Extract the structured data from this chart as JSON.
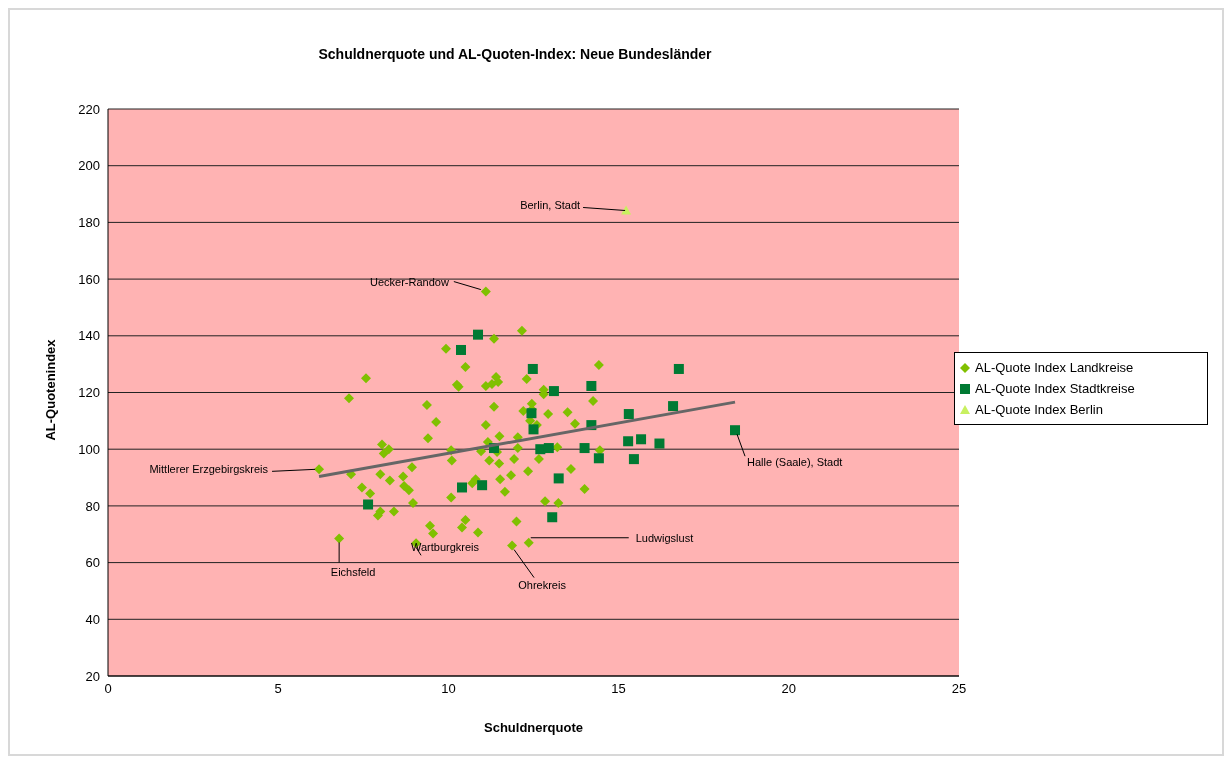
{
  "chart_data": {
    "type": "scatter",
    "title": "Schuldnerquote und AL-Quoten-Index: Neue Bundesländer",
    "xlabel": "Schuldnerquote",
    "ylabel": "AL-Quotenindex",
    "xlim": [
      0,
      25
    ],
    "xticks": [
      0,
      5,
      10,
      15,
      20,
      25
    ],
    "ylim": [
      20,
      220
    ],
    "yticks": [
      20,
      40,
      60,
      80,
      100,
      120,
      140,
      160,
      180,
      200,
      220
    ],
    "grid": "y",
    "legend": "right",
    "series": [
      {
        "name": "AL-Quote Index Landkreise",
        "color": "#80c000",
        "marker": "diamond",
        "x": [
          6.2,
          7.14,
          7.08,
          7.58,
          7.46,
          7.7,
          8.0,
          8.0,
          7.93,
          8.05,
          8.1,
          8.25,
          8.28,
          8.4,
          8.67,
          8.7,
          8.84,
          8.93,
          8.96,
          9.37,
          9.4,
          9.46,
          9.55,
          9.64,
          9.05,
          9.93,
          10.08,
          10.08,
          10.1,
          10.25,
          10.3,
          10.4,
          10.5,
          10.5,
          10.7,
          10.8,
          10.87,
          10.96,
          11.1,
          11.1,
          11.1,
          11.16,
          11.2,
          11.28,
          11.34,
          11.34,
          11.4,
          11.46,
          11.43,
          11.49,
          11.5,
          11.52,
          11.66,
          11.84,
          11.93,
          11.87,
          12.0,
          12.04,
          12.04,
          12.2,
          12.16,
          12.3,
          12.34,
          12.36,
          12.4,
          12.45,
          12.45,
          12.6,
          12.66,
          12.8,
          12.8,
          12.84,
          12.93,
          13.2,
          13.23,
          13.5,
          13.6,
          13.72,
          14.0,
          14.25,
          14.42,
          14.45,
          6.79
        ],
        "values": [
          92.9,
          91.2,
          118,
          125,
          86.5,
          84.4,
          91.2,
          78,
          76.6,
          101.7,
          98.5,
          100,
          89,
          78,
          90.4,
          87,
          85.5,
          93.6,
          81,
          115.6,
          103.9,
          73,
          70.3,
          109.6,
          66.8,
          135.4,
          99.6,
          83,
          96,
          122.7,
          122,
          72.4,
          75,
          129,
          88,
          89.4,
          70.6,
          99.3,
          155.6,
          122.3,
          108.5,
          102.5,
          96,
          123,
          139,
          115,
          125.5,
          123.7,
          99,
          95,
          104.6,
          89.4,
          85,
          90.8,
          96.5,
          66,
          74.5,
          100.4,
          104.2,
          113.5,
          141.8,
          124.8,
          92.2,
          67,
          110,
          114,
          116,
          108.5,
          96.5,
          121,
          119.4,
          81.6,
          112.4,
          100.7,
          81,
          113,
          93,
          109,
          86,
          117,
          129.7,
          99.6,
          68.5
        ]
      },
      {
        "name": "AL-Quote Index Stadtkreise",
        "color": "#007a33",
        "marker": "square",
        "x": [
          7.64,
          10.37,
          10.4,
          10.87,
          10.99,
          11.34,
          12.44,
          12.48,
          12.5,
          12.7,
          12.95,
          13.1,
          13.24,
          13.05,
          14.0,
          14.2,
          14.2,
          14.42,
          15.3,
          15.28,
          15.45,
          15.66,
          16.2,
          16.6,
          16.77,
          18.42
        ],
        "values": [
          80.5,
          135,
          86.5,
          140.4,
          87.3,
          100.4,
          112.7,
          128.3,
          107,
          100,
          100.4,
          120.5,
          89.7,
          76,
          100.4,
          122.3,
          108.5,
          96.8,
          112.4,
          102.8,
          96.5,
          103.5,
          102,
          115.2,
          128.3,
          106.7
        ]
      },
      {
        "name": "AL-Quote Index Berlin",
        "color": "#c8f060",
        "marker": "triangle",
        "x": [
          15.22
        ],
        "values": [
          184.2
        ]
      },
      {
        "type": "line",
        "color": "#666666",
        "marker": "none",
        "x": [
          6.2,
          18.42
        ],
        "values": [
          90.4,
          116.6
        ]
      }
    ],
    "annotations": [
      {
        "text": "Berlin, Stadt",
        "x": 15.22,
        "y": 184.2
      },
      {
        "text": "Uecker-Randow",
        "x": 11.1,
        "y": 155.6
      },
      {
        "text": "Mittlerer Erzgebirgskreis",
        "x": 6.2,
        "y": 92.9
      },
      {
        "text": "Halle (Saale), Stadt",
        "x": 18.42,
        "y": 106.7
      },
      {
        "text": "Ludwigslust",
        "x": 12.36,
        "y": 67
      },
      {
        "text": "Ohrekreis",
        "x": 11.87,
        "y": 66
      },
      {
        "text": "Wartburgkreis",
        "x": 9.05,
        "y": 66.8
      },
      {
        "text": "Eichsfeld",
        "x": 6.79,
        "y": 68.5
      }
    ]
  }
}
